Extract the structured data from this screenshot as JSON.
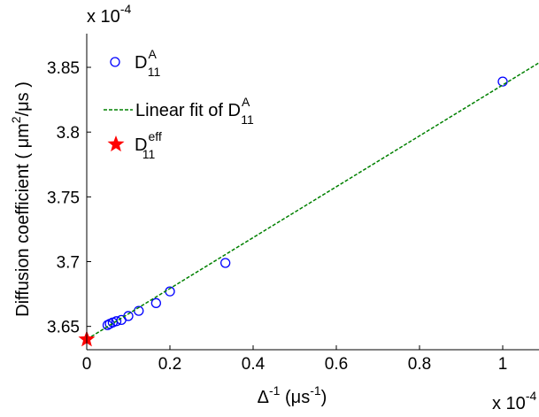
{
  "chart_data": {
    "type": "scatter",
    "xlabel": {
      "base": "Δ",
      "sup": "-1",
      "unit_open": " (μs",
      "unit_sup": "-1",
      "unit_close": ")"
    },
    "ylabel": {
      "text": "Diffusion coefficient ( μm",
      "sup": "2",
      "tail": "/μs )"
    },
    "x_multiplier": {
      "text": "x 10",
      "sup": "-4"
    },
    "y_multiplier": {
      "text": "x 10",
      "sup": "-4"
    },
    "xlim": [
      0,
      1.1
    ],
    "ylim": [
      3.632,
      3.876
    ],
    "xticks": [
      0,
      0.2,
      0.4,
      0.6,
      0.8,
      1
    ],
    "xtick_labels": [
      "0",
      "0.2",
      "0.4",
      "0.6",
      "0.8",
      "1"
    ],
    "yticks": [
      3.65,
      3.7,
      3.75,
      3.8,
      3.85
    ],
    "ytick_labels": [
      "3.65",
      "3.7",
      "3.75",
      "3.8",
      "3.85"
    ],
    "grid": false,
    "legend_position": "top-left",
    "series": [
      {
        "name": {
          "base": "D",
          "sup": "A",
          "sub": "11"
        },
        "kind": "markers",
        "marker": "circle",
        "color": "#0000ff",
        "x": [
          0.05,
          0.0556,
          0.0625,
          0.0714,
          0.0833,
          0.1,
          0.125,
          0.1667,
          0.2,
          0.3333,
          1.0
        ],
        "y": [
          3.651,
          3.652,
          3.653,
          3.654,
          3.655,
          3.658,
          3.662,
          3.668,
          3.677,
          3.699,
          3.839
        ]
      },
      {
        "name": {
          "base": "Linear fit of D",
          "sup": "A",
          "sub": "11"
        },
        "kind": "line",
        "line_style": "dashed",
        "color": "#008000",
        "x": [
          0,
          1.1
        ],
        "y": [
          3.64,
          3.856
        ]
      },
      {
        "name": {
          "base": "D",
          "sup": "eff",
          "sub": "11"
        },
        "kind": "markers",
        "marker": "star",
        "color": "#ff0000",
        "x": [
          0
        ],
        "y": [
          3.64
        ]
      }
    ]
  }
}
